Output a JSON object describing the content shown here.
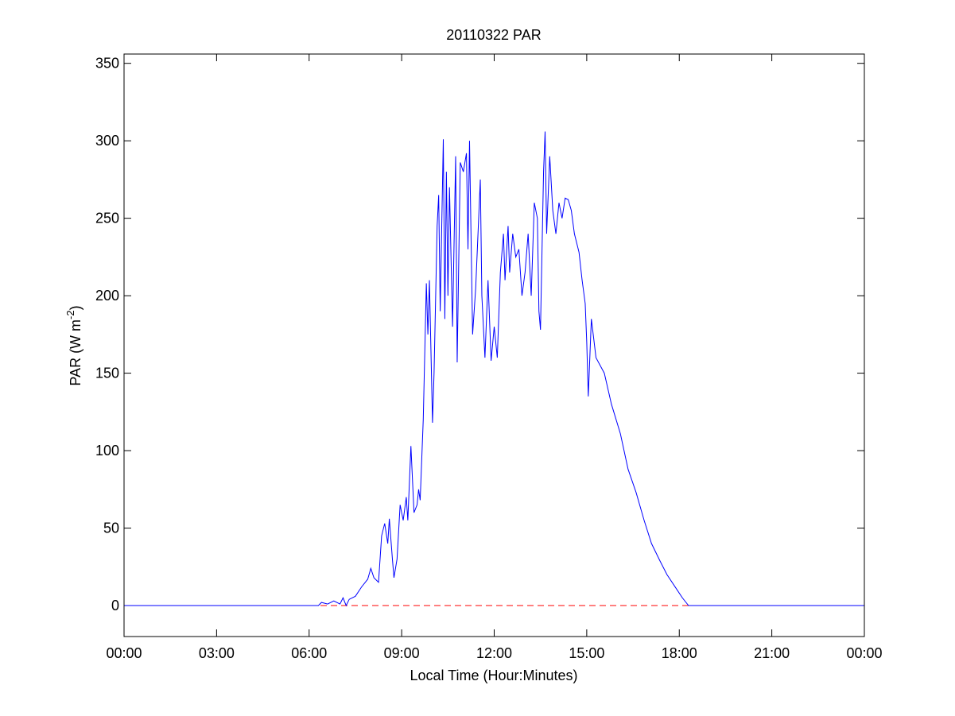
{
  "chart_data": {
    "type": "line",
    "title": "20110322 PAR",
    "xlabel": "Local Time (Hour:Minutes)",
    "ylabel": {
      "main": "PAR (W m",
      "sup": "-2",
      "end": ")"
    },
    "series": [
      {
        "color": "#0000ff",
        "x": [
          0,
          6.3,
          6.4,
          6.6,
          6.8,
          7.0,
          7.1,
          7.2,
          7.3,
          7.5,
          7.7,
          7.9,
          8.0,
          8.1,
          8.25,
          8.35,
          8.45,
          8.55,
          8.6,
          8.7,
          8.75,
          8.85,
          8.95,
          9.05,
          9.15,
          9.2,
          9.3,
          9.4,
          9.5,
          9.55,
          9.6,
          9.7,
          9.8,
          9.85,
          9.9,
          10.0,
          10.05,
          10.15,
          10.2,
          10.25,
          10.35,
          10.4,
          10.45,
          10.5,
          10.55,
          10.65,
          10.75,
          10.8,
          10.9,
          11.0,
          11.1,
          11.15,
          11.2,
          11.3,
          11.4,
          11.55,
          11.6,
          11.7,
          11.8,
          11.9,
          12.0,
          12.1,
          12.2,
          12.3,
          12.35,
          12.45,
          12.5,
          12.6,
          12.7,
          12.8,
          12.9,
          13.0,
          13.1,
          13.2,
          13.3,
          13.4,
          13.45,
          13.5,
          13.6,
          13.65,
          13.7,
          13.8,
          13.9,
          14.0,
          14.1,
          14.2,
          14.3,
          14.4,
          14.5,
          14.6,
          14.75,
          14.85,
          14.95,
          15.0,
          15.05,
          15.15,
          15.3,
          15.57,
          15.8,
          16.09,
          16.34,
          16.6,
          16.86,
          17.1,
          17.37,
          17.6,
          17.9,
          18.1,
          18.3,
          24
        ],
        "values": [
          0,
          0,
          2,
          1,
          3,
          1,
          5,
          0,
          4,
          6,
          12,
          17,
          24,
          18,
          15,
          45,
          53,
          40,
          56,
          30,
          18,
          30,
          65,
          55,
          70,
          55,
          103,
          60,
          65,
          75,
          68,
          120,
          208,
          175,
          210,
          118,
          150,
          245,
          265,
          190,
          301,
          185,
          280,
          200,
          270,
          180,
          290,
          157,
          286,
          280,
          292,
          230,
          300,
          175,
          205,
          275,
          200,
          160,
          210,
          158,
          180,
          160,
          215,
          240,
          210,
          245,
          215,
          240,
          225,
          230,
          200,
          215,
          240,
          200,
          260,
          250,
          190,
          178,
          280,
          306,
          240,
          290,
          255,
          240,
          260,
          250,
          263,
          262,
          255,
          240,
          228,
          210,
          195,
          170,
          135,
          185,
          160,
          150,
          130,
          111,
          88,
          73,
          55,
          40,
          29,
          20,
          11,
          5,
          0,
          0
        ]
      }
    ],
    "hline": {
      "value": 0,
      "color": "#ff0000",
      "dashed": true
    },
    "xlim": [
      0,
      24
    ],
    "xticks": [
      {
        "value": 0,
        "label": "00:00"
      },
      {
        "value": 3,
        "label": "03:00"
      },
      {
        "value": 6,
        "label": "06:00"
      },
      {
        "value": 9,
        "label": "09:00"
      },
      {
        "value": 12,
        "label": "12:00"
      },
      {
        "value": 15,
        "label": "15:00"
      },
      {
        "value": 18,
        "label": "18:00"
      },
      {
        "value": 21,
        "label": "21:00"
      },
      {
        "value": 24,
        "label": "00:00"
      }
    ],
    "ylim": [
      -20,
      356
    ],
    "yticks": [
      0,
      50,
      100,
      150,
      200,
      250,
      300,
      350
    ],
    "grid": false
  }
}
